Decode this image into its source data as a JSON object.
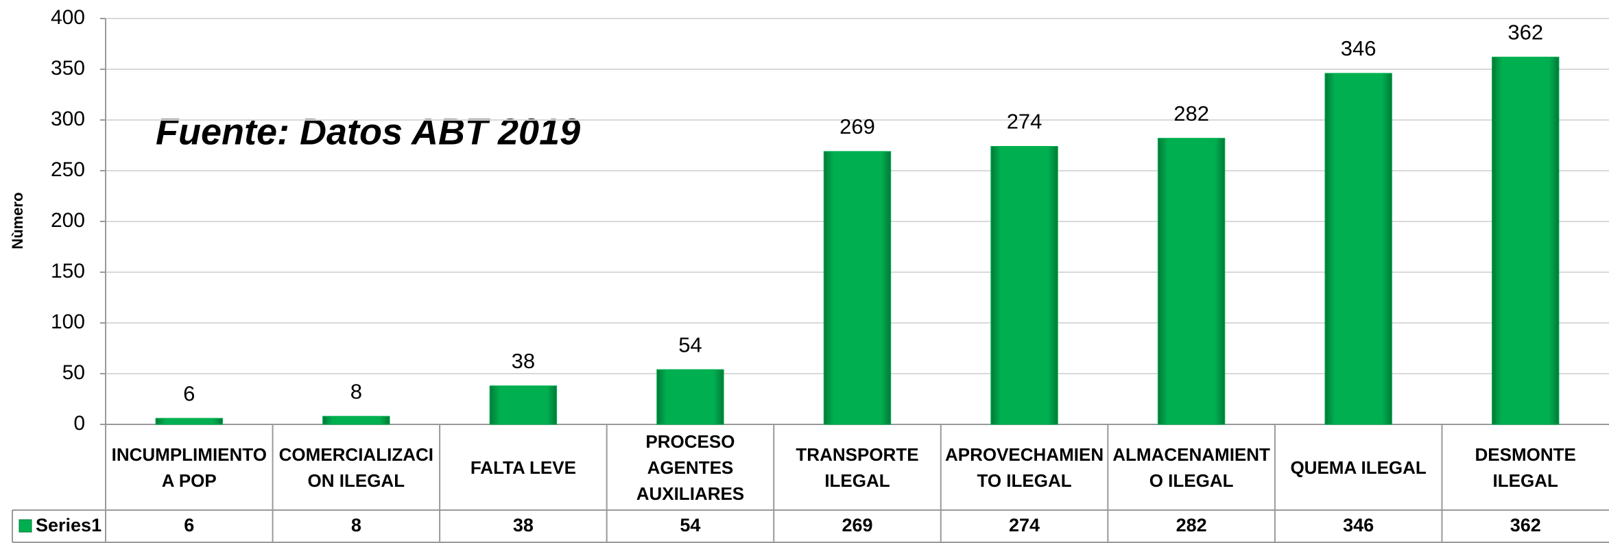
{
  "chart_data": {
    "type": "bar",
    "annotation": "Fuente: Datos ABT 2019",
    "y_label": "Nùmero",
    "categories": [
      "INCUMPLIMIENTO A POP",
      "COMERCIALIZACION ILEGAL",
      "FALTA LEVE",
      "PROCESO AGENTES AUXILIARES",
      "TRANSPORTE ILEGAL",
      "APROVECHAMIENTO ILEGAL",
      "ALMACENAMIENTO ILEGAL",
      "QUEMA ILEGAL",
      "DESMONTE ILEGAL"
    ],
    "series": [
      {
        "name": "Series1",
        "color": "#00b050",
        "values": [
          6,
          8,
          38,
          54,
          269,
          274,
          282,
          346,
          362
        ]
      }
    ],
    "ylim": [
      0,
      400
    ],
    "yticks": [
      0,
      50,
      100,
      150,
      200,
      250,
      300,
      350,
      400
    ],
    "grid": true
  }
}
